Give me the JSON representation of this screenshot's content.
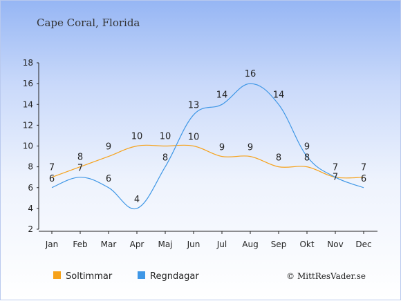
{
  "chart_data": {
    "type": "line",
    "title": "Cape Coral, Florida",
    "categories": [
      "Jan",
      "Feb",
      "Mar",
      "Apr",
      "Maj",
      "Jun",
      "Jul",
      "Aug",
      "Sep",
      "Okt",
      "Nov",
      "Dec"
    ],
    "series": [
      {
        "name": "Soltimmar",
        "color": "#f6a21b",
        "values": [
          7,
          8,
          9,
          10,
          10,
          10,
          9,
          9,
          8,
          8,
          7,
          7
        ]
      },
      {
        "name": "Regndagar",
        "color": "#3f97e6",
        "values": [
          6,
          7,
          6,
          4,
          8,
          13,
          14,
          16,
          14,
          9,
          7,
          6
        ]
      }
    ],
    "ylim": [
      2,
      18
    ],
    "yticks": [
      2,
      4,
      6,
      8,
      10,
      12,
      14,
      16,
      18
    ],
    "grid": false,
    "legend": "bottom-left",
    "credit": "© MittResVader.se"
  }
}
